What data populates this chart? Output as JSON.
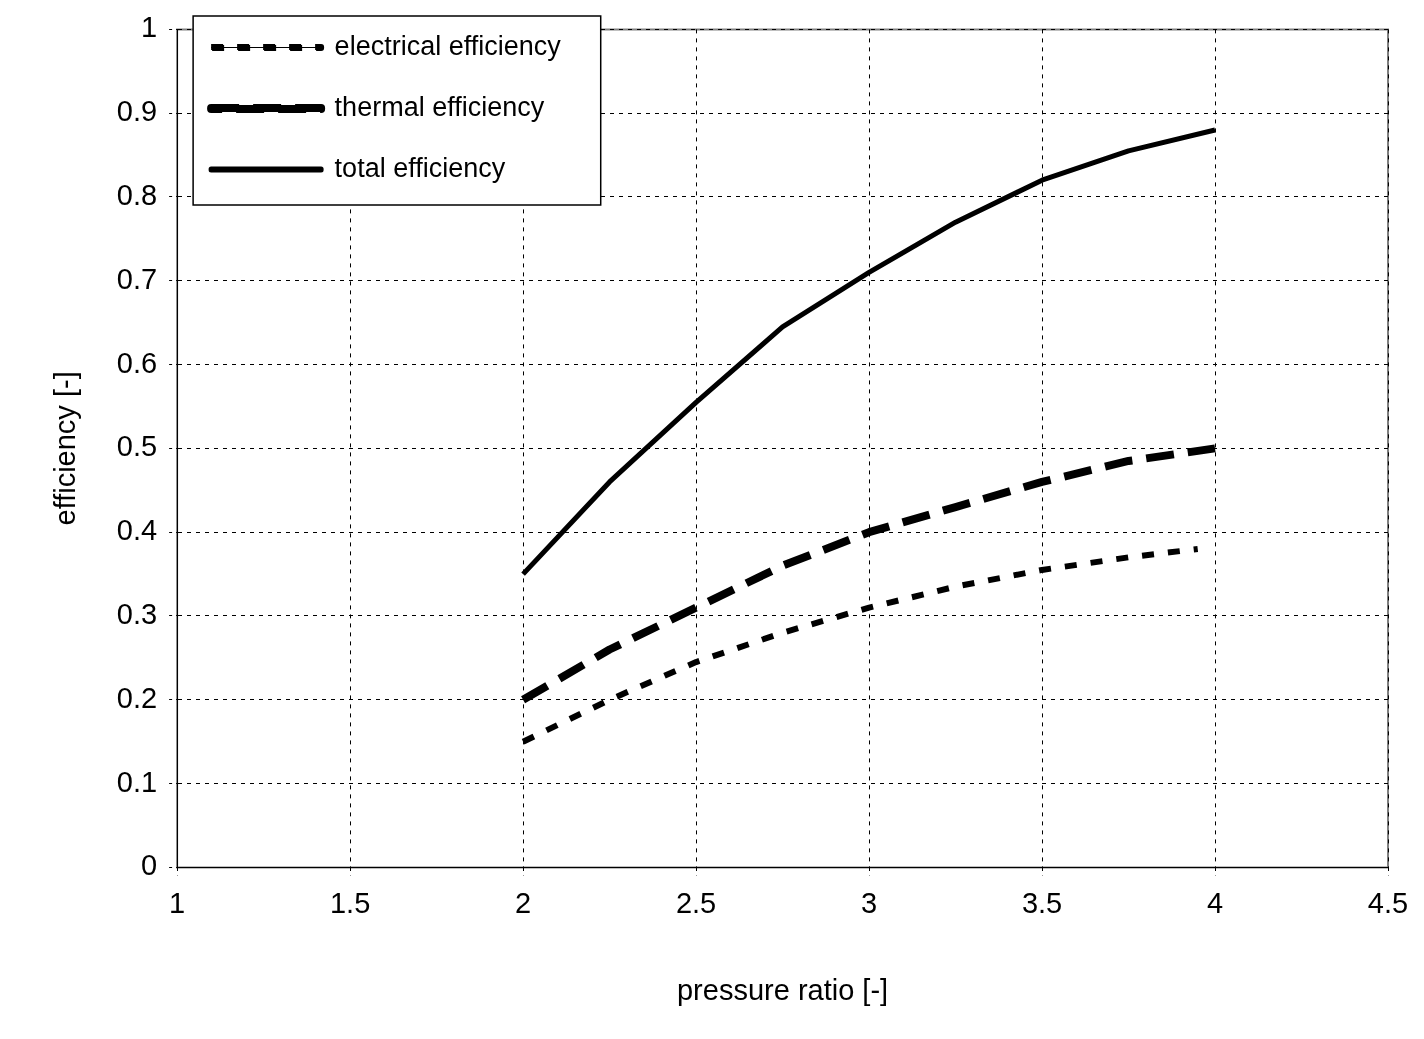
{
  "chart_data": {
    "type": "line",
    "xlabel": "pressure ratio [-]",
    "ylabel": "efficiency [-]",
    "xlim": [
      1,
      4.5
    ],
    "xticks": [
      1,
      1.5,
      2,
      2.5,
      3,
      3.5,
      4,
      4.5
    ],
    "ylim": [
      0,
      1
    ],
    "yticks": [
      0,
      0.1,
      0.2,
      0.3,
      0.4,
      0.5,
      0.6,
      0.7,
      0.8,
      0.9,
      1
    ],
    "grid": true,
    "legend": "top left",
    "marker": "none",
    "series": [
      {
        "name": "electrical efficiency",
        "color": "#000000",
        "line_style": "dotted",
        "x": [
          2,
          2.25,
          2.5,
          2.75,
          3,
          3.25,
          3.5,
          3.75,
          3.95
        ],
        "values": [
          0.15,
          0.2,
          0.245,
          0.28,
          0.31,
          0.335,
          0.355,
          0.37,
          0.38
        ]
      },
      {
        "name": "thermal efficiency",
        "color": "#000000",
        "line_style": "dashed",
        "x": [
          2,
          2.25,
          2.5,
          2.75,
          3,
          3.25,
          3.5,
          3.75,
          4
        ],
        "values": [
          0.2,
          0.26,
          0.31,
          0.36,
          0.4,
          0.43,
          0.46,
          0.485,
          0.5
        ]
      },
      {
        "name": "total efficiency",
        "color": "#000000",
        "line_style": "solid",
        "x": [
          2,
          2.25,
          2.5,
          2.75,
          3,
          3.25,
          3.5,
          3.75,
          4
        ],
        "values": [
          0.35,
          0.46,
          0.555,
          0.645,
          0.71,
          0.77,
          0.82,
          0.855,
          0.88
        ]
      }
    ]
  }
}
